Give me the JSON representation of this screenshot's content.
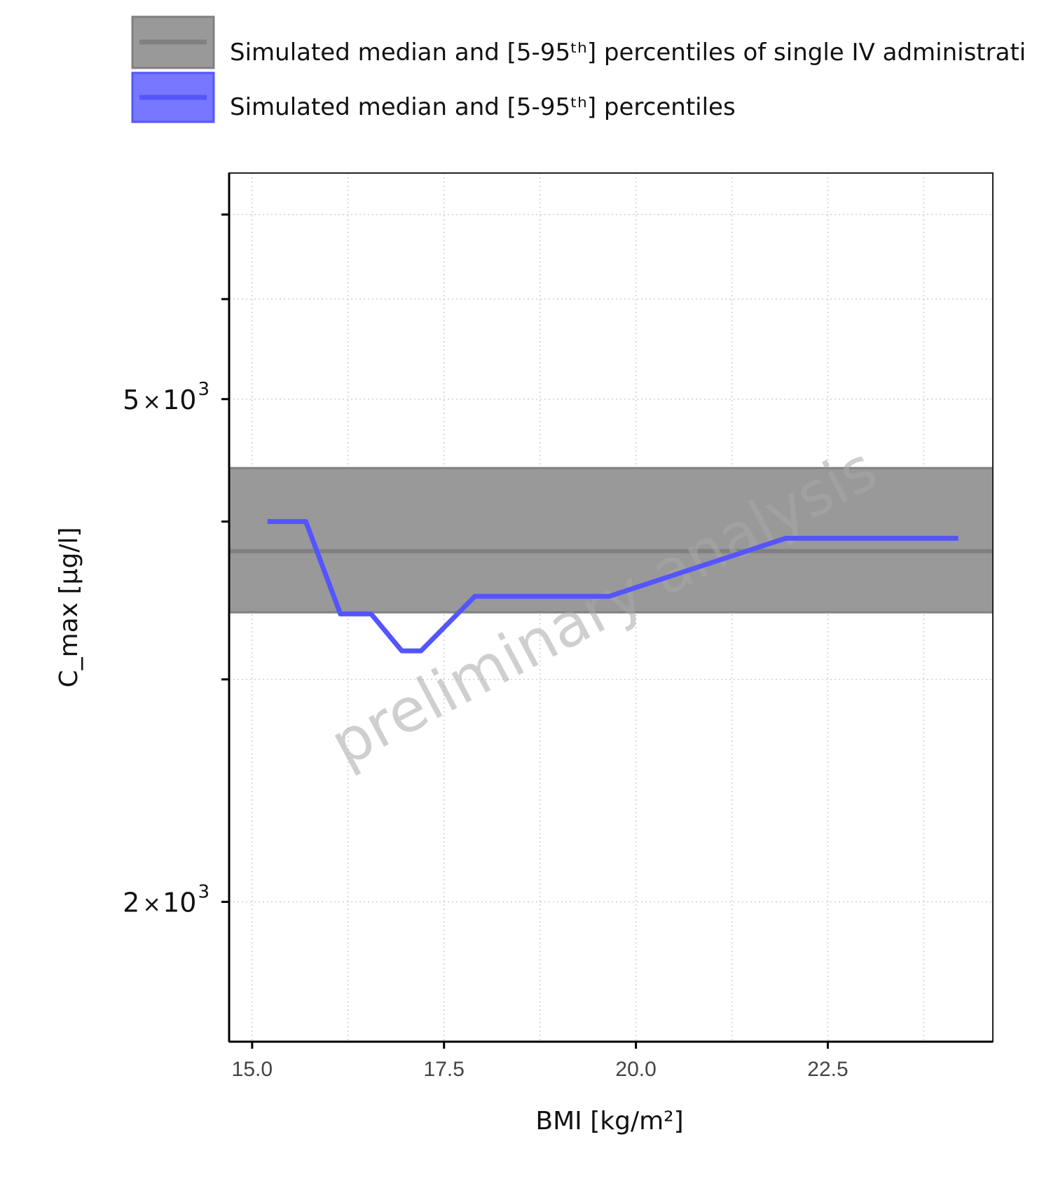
{
  "chart_data": {
    "type": "line",
    "title": "",
    "xlabel": "BMI [kg/m²]",
    "ylabel": "C_max [µg/l]",
    "y_scale": "log",
    "xlim": [
      14.7,
      24.65
    ],
    "ylim": [
      1550,
      7550
    ],
    "x_ticks": [
      {
        "value": 15.0,
        "label": "15.0"
      },
      {
        "value": 17.5,
        "label": "17.5"
      },
      {
        "value": 20.0,
        "label": "20.0"
      },
      {
        "value": 22.5,
        "label": "22.5"
      }
    ],
    "y_ticks_labeled": [
      {
        "value": 2000,
        "mantissa": "2",
        "times": "×",
        "base": "10",
        "exponent": "3"
      },
      {
        "value": 5000,
        "mantissa": "5",
        "times": "×",
        "base": "10",
        "exponent": "3"
      }
    ],
    "y_ticks_minor": [
      3000,
      4000,
      6000,
      7000
    ],
    "grid": true,
    "legend_position": "top-left",
    "watermark": "preliminary analysis",
    "reference_band": {
      "name": "Simulated median and [5-95ᵗʰ] percentiles of single IV administrati",
      "median": 3790,
      "lower": 3390,
      "upper": 4410,
      "fill_color": "#999999",
      "line_color": "#808080"
    },
    "series": [
      {
        "name": "Simulated median and [5-95ᵗʰ] percentiles",
        "color": "#5555ff",
        "x": [
          15.2,
          15.7,
          16.15,
          16.55,
          16.95,
          17.2,
          17.9,
          19.65,
          21.95,
          24.2
        ],
        "y": [
          4000,
          4000,
          3380,
          3380,
          3160,
          3160,
          3490,
          3490,
          3880,
          3880
        ]
      }
    ]
  }
}
